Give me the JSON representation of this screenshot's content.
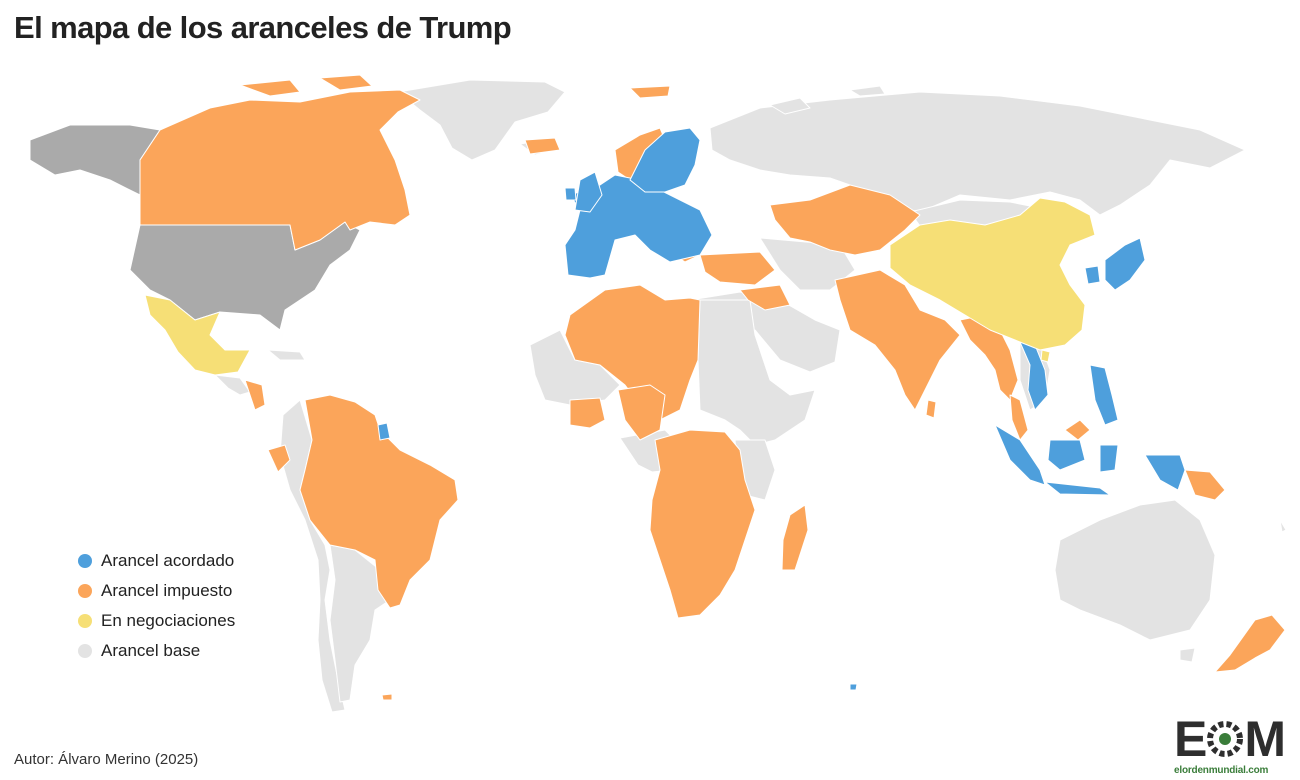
{
  "title": "El mapa de los aranceles de Trump",
  "legend": [
    {
      "label": "Arancel acordado",
      "color": "#4e9fdc"
    },
    {
      "label": "Arancel impuesto",
      "color": "#fba55a"
    },
    {
      "label": "En negociaciones",
      "color": "#f6df76"
    },
    {
      "label": "Arancel base",
      "color": "#e3e3e3"
    }
  ],
  "colors": {
    "usa": "#aaaaaa",
    "background": "#ffffff",
    "border": "#ffffff"
  },
  "author": "Autor: Álvaro Merino (2025)",
  "logo": {
    "mark_left": "E",
    "mark_right": "M",
    "site": "elordenmundial.com",
    "accent": "#3a7d3a"
  }
}
